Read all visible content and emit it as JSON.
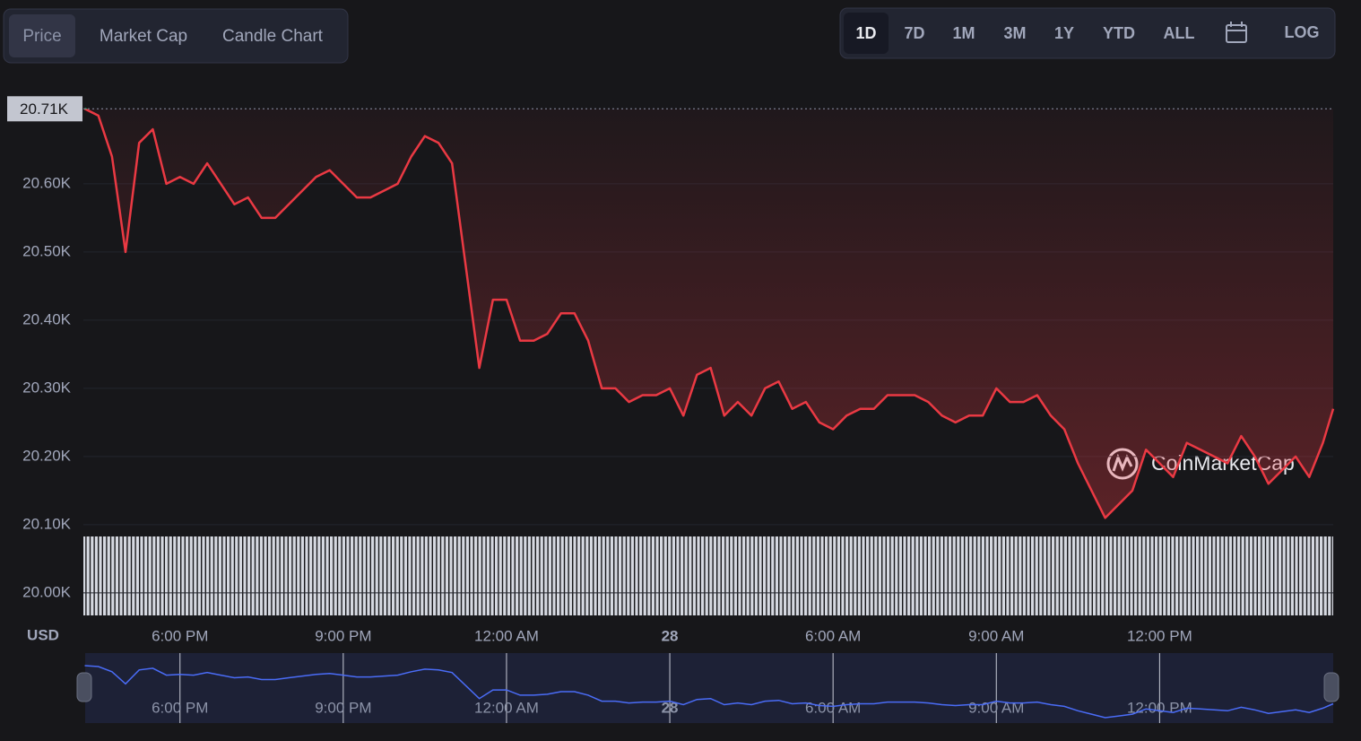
{
  "controls": {
    "tabs": [
      "Price",
      "Market Cap",
      "Candle Chart"
    ],
    "active_tab": 0,
    "ranges": [
      "1D",
      "7D",
      "1M",
      "3M",
      "1Y",
      "YTD",
      "ALL"
    ],
    "active_range": 0,
    "log": "LOG"
  },
  "watermark": "CoinMarketCap",
  "chart_data": {
    "type": "line",
    "x": [
      16.25,
      16.5,
      16.75,
      17,
      17.25,
      17.5,
      17.75,
      18,
      18.25,
      18.5,
      18.75,
      19,
      19.25,
      19.5,
      19.75,
      20,
      20.25,
      20.5,
      20.75,
      21,
      21.25,
      21.5,
      21.75,
      22,
      22.25,
      22.5,
      22.75,
      23,
      23.25,
      23.5,
      23.75,
      24,
      24.25,
      24.5,
      24.75,
      25,
      25.25,
      25.5,
      25.75,
      26,
      26.25,
      26.5,
      26.75,
      27,
      27.25,
      27.5,
      27.75,
      28,
      28.25,
      28.5,
      28.75,
      29,
      29.25,
      29.5,
      29.75,
      30,
      30.25,
      30.5,
      30.75,
      31,
      31.25,
      31.5,
      31.75,
      32,
      32.25,
      32.5,
      32.75,
      33,
      33.25,
      33.5,
      33.75,
      34,
      34.25,
      34.5,
      34.75,
      35,
      35.25,
      35.5,
      35.75,
      36,
      36.25,
      36.5,
      36.75,
      37,
      37.25,
      37.5,
      37.75,
      38,
      38.25,
      38.5,
      38.75,
      39,
      39.19
    ],
    "series": [
      {
        "color": "#ea3943",
        "values": [
          20.71,
          20.7,
          20.64,
          20.5,
          20.66,
          20.68,
          20.6,
          20.61,
          20.6,
          20.63,
          20.6,
          20.57,
          20.58,
          20.55,
          20.55,
          20.57,
          20.59,
          20.61,
          20.62,
          20.6,
          20.58,
          20.58,
          20.59,
          20.6,
          20.64,
          20.67,
          20.66,
          20.63,
          20.48,
          20.33,
          20.43,
          20.43,
          20.37,
          20.37,
          20.38,
          20.41,
          20.41,
          20.37,
          20.3,
          20.3,
          20.28,
          20.29,
          20.29,
          20.3,
          20.26,
          20.32,
          20.33,
          20.26,
          20.28,
          20.26,
          20.3,
          20.31,
          20.27,
          20.28,
          20.25,
          20.24,
          20.26,
          20.27,
          20.27,
          20.29,
          20.29,
          20.29,
          20.28,
          20.26,
          20.25,
          20.26,
          20.26,
          20.3,
          20.28,
          20.28,
          20.29,
          20.26,
          20.24,
          20.19,
          20.15,
          20.11,
          20.13,
          20.15,
          20.21,
          20.19,
          20.17,
          20.22,
          20.21,
          20.2,
          20.19,
          20.23,
          20.2,
          20.16,
          20.18,
          20.2,
          20.17,
          20.22,
          20.27
        ]
      }
    ],
    "rise_color": "#16c784",
    "navigator_color": "#4a6cf7",
    "reference": {
      "value": 20.71,
      "label": "20.71K"
    },
    "xlim": [
      16.225,
      39.19
    ],
    "xticks": [
      {
        "value": 18,
        "label": "6:00 PM"
      },
      {
        "value": 21,
        "label": "9:00 PM"
      },
      {
        "value": 24,
        "label": "12:00 AM"
      },
      {
        "value": 27,
        "label": "28"
      },
      {
        "value": 30,
        "label": "6:00 AM"
      },
      {
        "value": 33,
        "label": "9:00 AM"
      },
      {
        "value": 36,
        "label": "12:00 PM"
      }
    ],
    "ylim": [
      19.967,
      20.738
    ],
    "yticks": [
      {
        "value": 20,
        "label": "20.00K"
      },
      {
        "value": 20.1,
        "label": "20.10K"
      },
      {
        "value": 20.2,
        "label": "20.20K"
      },
      {
        "value": 20.3,
        "label": "20.30K"
      },
      {
        "value": 20.4,
        "label": "20.40K"
      },
      {
        "value": 20.5,
        "label": "20.50K"
      },
      {
        "value": 20.6,
        "label": "20.60K"
      }
    ],
    "y_unit": "USD",
    "grid": true
  }
}
